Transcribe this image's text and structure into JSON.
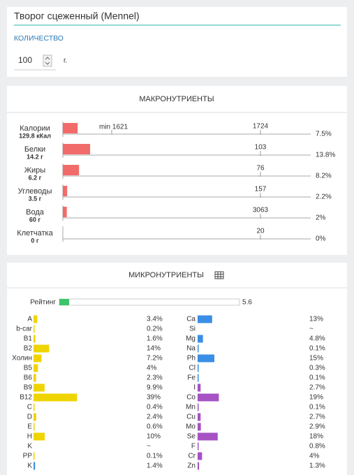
{
  "product": {
    "title": "Творог сцеженный (Mennel)",
    "quantity_label": "КОЛИЧЕСТВО",
    "quantity": 100,
    "unit": "г."
  },
  "macro": {
    "title": "МАКРОНУТРИЕНТЫ",
    "min_label": "min 1621",
    "rows": [
      {
        "name": "Калории",
        "amount": "129.8 кКал",
        "norm": 1724,
        "percent": 7.5,
        "percent_label": "7.5%"
      },
      {
        "name": "Белки",
        "amount": "14.2 г",
        "norm": 103,
        "percent": 13.8,
        "percent_label": "13.8%"
      },
      {
        "name": "Жиры",
        "amount": "6.2 г",
        "norm": 76,
        "percent": 8.2,
        "percent_label": "8.2%"
      },
      {
        "name": "Углеводы",
        "amount": "3.5 г",
        "norm": 157,
        "percent": 2.2,
        "percent_label": "2.2%"
      },
      {
        "name": "Вода",
        "amount": "60 г",
        "norm": 3063,
        "percent": 2,
        "percent_label": "2%"
      },
      {
        "name": "Клетчатка",
        "amount": "0 г",
        "norm": 20,
        "percent": 0,
        "percent_label": "0%"
      }
    ]
  },
  "micro": {
    "title": "МИКРОНУТРИЕНТЫ",
    "rating_label": "Рейтинг",
    "rating": 5.6,
    "left": [
      {
        "name": "A",
        "percent": 3.4,
        "percent_label": "3.4%",
        "color": "#f0d400"
      },
      {
        "name": "b-car",
        "percent": 0.2,
        "percent_label": "0.2%",
        "color": "#f0d400"
      },
      {
        "name": "B1",
        "percent": 1.6,
        "percent_label": "1.6%",
        "color": "#f0d400"
      },
      {
        "name": "B2",
        "percent": 14,
        "percent_label": "14%",
        "color": "#f0d400"
      },
      {
        "name": "Холин",
        "percent": 7.2,
        "percent_label": "7.2%",
        "color": "#f0d400"
      },
      {
        "name": "B5",
        "percent": 4,
        "percent_label": "4%",
        "color": "#f0d400"
      },
      {
        "name": "B6",
        "percent": 2.3,
        "percent_label": "2.3%",
        "color": "#f0d400"
      },
      {
        "name": "B9",
        "percent": 9.9,
        "percent_label": "9.9%",
        "color": "#f0d400"
      },
      {
        "name": "B12",
        "percent": 39,
        "percent_label": "39%",
        "color": "#f0d400"
      },
      {
        "name": "C",
        "percent": 0.4,
        "percent_label": "0.4%",
        "color": "#f0d400"
      },
      {
        "name": "D",
        "percent": 2.4,
        "percent_label": "2.4%",
        "color": "#f0d400"
      },
      {
        "name": "E",
        "percent": 0.6,
        "percent_label": "0.6%",
        "color": "#f0d400"
      },
      {
        "name": "H",
        "percent": 10,
        "percent_label": "10%",
        "color": "#f0d400"
      },
      {
        "name": "K",
        "percent": null,
        "percent_label": "~",
        "color": "#f0d400"
      },
      {
        "name": "PP",
        "percent": 0.1,
        "percent_label": "0.1%",
        "color": "#f0d400"
      },
      {
        "name": "K",
        "percent": 1.4,
        "percent_label": "1.4%",
        "color": "#3a8ee6"
      }
    ],
    "right": [
      {
        "name": "Ca",
        "percent": 13,
        "percent_label": "13%",
        "color": "#3a8ee6"
      },
      {
        "name": "Si",
        "percent": null,
        "percent_label": "~",
        "color": "#3a8ee6"
      },
      {
        "name": "Mg",
        "percent": 4.8,
        "percent_label": "4.8%",
        "color": "#3a8ee6"
      },
      {
        "name": "Na",
        "percent": 0.1,
        "percent_label": "0.1%",
        "color": "#3a8ee6"
      },
      {
        "name": "Ph",
        "percent": 15,
        "percent_label": "15%",
        "color": "#3a8ee6"
      },
      {
        "name": "Cl",
        "percent": 0.3,
        "percent_label": "0.3%",
        "color": "#3a8ee6"
      },
      {
        "name": "Fe",
        "percent": 0.1,
        "percent_label": "0.1%",
        "color": "#3a8ee6"
      },
      {
        "name": "I",
        "percent": 2.7,
        "percent_label": "2.7%",
        "color": "#a652c4"
      },
      {
        "name": "Co",
        "percent": 19,
        "percent_label": "19%",
        "color": "#a652c4"
      },
      {
        "name": "Mn",
        "percent": 0.1,
        "percent_label": "0.1%",
        "color": "#a652c4"
      },
      {
        "name": "Cu",
        "percent": 2.7,
        "percent_label": "2.7%",
        "color": "#a652c4"
      },
      {
        "name": "Mo",
        "percent": 2.9,
        "percent_label": "2.9%",
        "color": "#a652c4"
      },
      {
        "name": "Se",
        "percent": 18,
        "percent_label": "18%",
        "color": "#a652c4"
      },
      {
        "name": "F",
        "percent": 0.8,
        "percent_label": "0.8%",
        "color": "#a652c4"
      },
      {
        "name": "Cr",
        "percent": 4,
        "percent_label": "4%",
        "color": "#a652c4"
      },
      {
        "name": "Zn",
        "percent": 1.3,
        "percent_label": "1.3%",
        "color": "#a652c4"
      }
    ]
  }
}
